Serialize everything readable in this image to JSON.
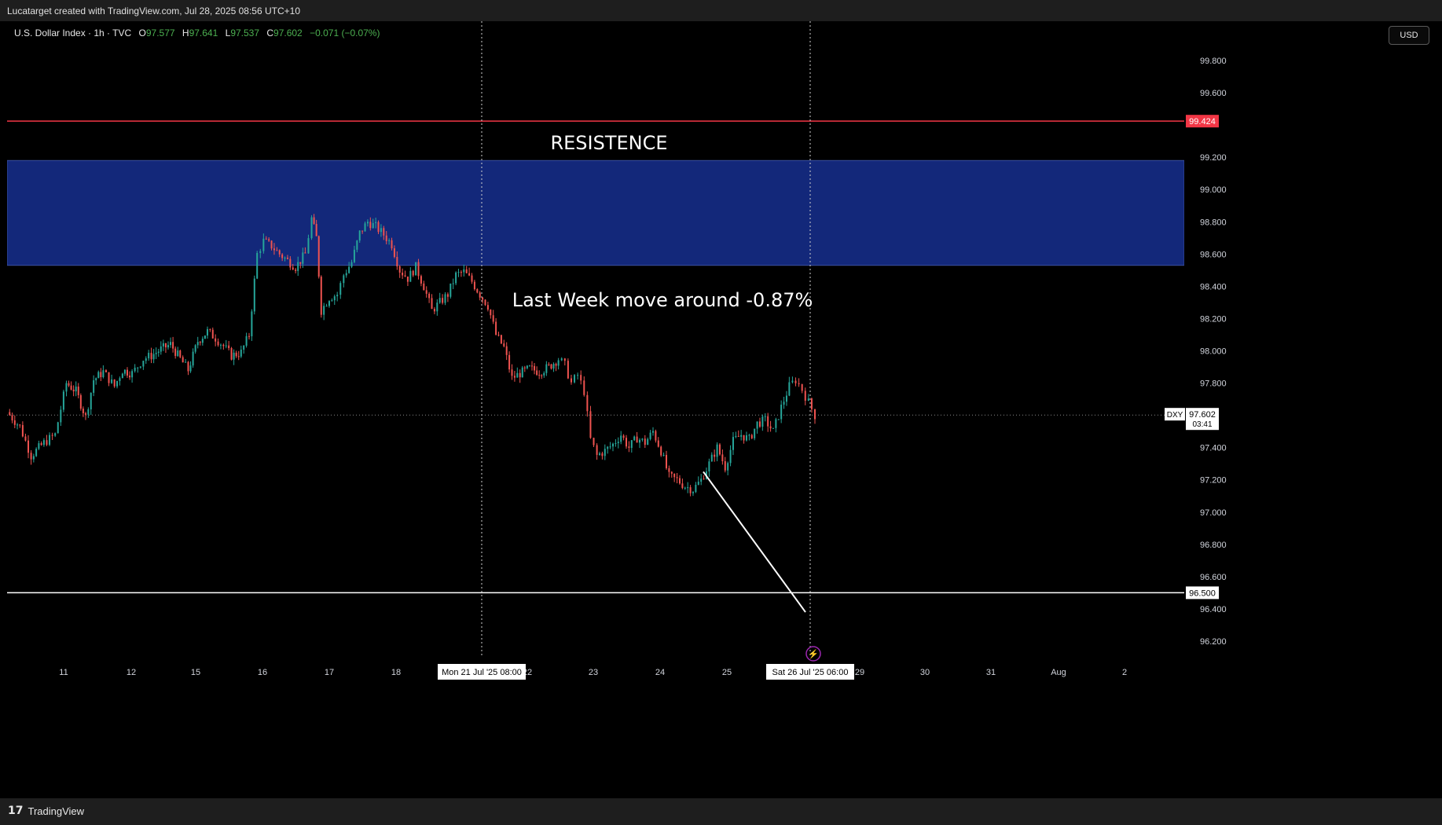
{
  "header": {
    "credit": "Lucatarget created with TradingView.com, Jul 28, 2025 08:56 UTC+10"
  },
  "legend": {
    "symbol": "U.S. Dollar Index · 1h · TVC",
    "o_label": "O",
    "o": "97.577",
    "h_label": "H",
    "h": "97.641",
    "l_label": "L",
    "l": "97.537",
    "c_label": "C",
    "c": "97.602",
    "change": "−0.071 (−0.07%)"
  },
  "currency_button": "USD",
  "footer": {
    "logo": "𝟭𝟳",
    "brand": "TradingView"
  },
  "colors": {
    "up": "#26a69a",
    "down": "#ef5350",
    "zone": "#13287a",
    "resistance_line": "#f23645",
    "support_line": "#ffffff",
    "text": "#ffffff"
  },
  "chart_data": {
    "type": "candlestick",
    "symbol": "DXY",
    "timeframe": "1h",
    "x_ticks": [
      "11",
      "12",
      "15",
      "16",
      "17",
      "18",
      "22",
      "23",
      "24",
      "25",
      "29",
      "30",
      "31",
      "Aug",
      "2"
    ],
    "y_ticks": [
      "99.800",
      "99.600",
      "99.200",
      "99.000",
      "98.800",
      "98.600",
      "98.400",
      "98.200",
      "98.000",
      "97.800",
      "97.400",
      "97.200",
      "97.000",
      "96.800",
      "96.600",
      "96.400",
      "96.200"
    ],
    "y_range": [
      96.1,
      100.0
    ],
    "last_price": {
      "label": "DXY",
      "value": "97.602",
      "countdown": "03:41"
    },
    "horizontal_lines": [
      {
        "name": "resistance",
        "value": "99.424",
        "color": "#f23645"
      },
      {
        "name": "support",
        "value": "96.500",
        "color": "#ffffff"
      }
    ],
    "resistance_zone": {
      "from": 98.53,
      "to": 99.18,
      "label": "RESISTENCE"
    },
    "annotation": "Last Week move around -0.87%",
    "trend_line": {
      "from_price": 97.25,
      "to_price": 96.38
    },
    "vertical_markers": [
      {
        "label": "Mon 21 Jul '25   08:00"
      },
      {
        "label": "Sat 26 Jul '25   06:00"
      }
    ],
    "series_path": [
      [
        0,
        97.62
      ],
      [
        0.8,
        97.53
      ],
      [
        1.5,
        97.35
      ],
      [
        2.3,
        97.43
      ],
      [
        3.0,
        97.48
      ],
      [
        3.7,
        97.8
      ],
      [
        4.3,
        97.75
      ],
      [
        4.9,
        97.59
      ],
      [
        5.4,
        97.82
      ],
      [
        6.0,
        97.87
      ],
      [
        6.7,
        97.78
      ],
      [
        7.2,
        97.88
      ],
      [
        7.8,
        97.86
      ],
      [
        8.5,
        97.95
      ],
      [
        9.0,
        97.97
      ],
      [
        9.6,
        98.01
      ],
      [
        10.2,
        98.04
      ],
      [
        10.8,
        97.95
      ],
      [
        11.3,
        97.88
      ],
      [
        11.9,
        98.06
      ],
      [
        12.5,
        98.12
      ],
      [
        13.0,
        98.08
      ],
      [
        13.5,
        98.03
      ],
      [
        14.0,
        97.97
      ],
      [
        14.6,
        97.99
      ],
      [
        15.1,
        98.1
      ],
      [
        15.6,
        98.6
      ],
      [
        16.0,
        98.68
      ],
      [
        16.5,
        98.65
      ],
      [
        17.0,
        98.6
      ],
      [
        17.5,
        98.56
      ],
      [
        18.0,
        98.52
      ],
      [
        18.6,
        98.6
      ],
      [
        19.0,
        98.82
      ],
      [
        19.3,
        98.7
      ],
      [
        19.6,
        98.25
      ],
      [
        20.1,
        98.33
      ],
      [
        20.6,
        98.35
      ],
      [
        21.0,
        98.47
      ],
      [
        21.5,
        98.55
      ],
      [
        22.0,
        98.73
      ],
      [
        22.5,
        98.8
      ],
      [
        23.0,
        98.77
      ],
      [
        23.5,
        98.72
      ],
      [
        24.0,
        98.66
      ],
      [
        24.5,
        98.5
      ],
      [
        25.0,
        98.45
      ],
      [
        25.5,
        98.52
      ],
      [
        26.0,
        98.4
      ],
      [
        26.5,
        98.25
      ],
      [
        27.0,
        98.3
      ],
      [
        27.5,
        98.35
      ],
      [
        28.0,
        98.47
      ],
      [
        28.5,
        98.49
      ],
      [
        29.0,
        98.43
      ],
      [
        29.5,
        98.35
      ],
      [
        30.0,
        98.28
      ],
      [
        30.5,
        98.1
      ],
      [
        31.0,
        98.02
      ],
      [
        31.5,
        97.83
      ],
      [
        32.0,
        97.86
      ],
      [
        32.6,
        97.89
      ],
      [
        33.2,
        97.87
      ],
      [
        33.8,
        97.9
      ],
      [
        34.4,
        97.95
      ],
      [
        34.8,
        97.91
      ],
      [
        35.2,
        97.8
      ],
      [
        35.6,
        97.85
      ],
      [
        36.0,
        97.75
      ],
      [
        36.4,
        97.45
      ],
      [
        36.8,
        97.35
      ],
      [
        37.3,
        97.38
      ],
      [
        37.8,
        97.42
      ],
      [
        38.3,
        97.48
      ],
      [
        38.8,
        97.4
      ],
      [
        39.3,
        97.46
      ],
      [
        39.8,
        97.43
      ],
      [
        40.3,
        97.5
      ],
      [
        40.8,
        97.38
      ],
      [
        41.3,
        97.22
      ],
      [
        41.8,
        97.2
      ],
      [
        42.3,
        97.16
      ],
      [
        42.8,
        97.14
      ],
      [
        43.3,
        97.2
      ],
      [
        43.8,
        97.3
      ],
      [
        44.3,
        97.4
      ],
      [
        44.8,
        97.28
      ],
      [
        45.3,
        97.44
      ],
      [
        45.8,
        97.48
      ],
      [
        46.3,
        97.45
      ],
      [
        46.8,
        97.55
      ],
      [
        47.3,
        97.57
      ],
      [
        47.8,
        97.5
      ],
      [
        48.3,
        97.65
      ],
      [
        48.8,
        97.78
      ],
      [
        49.2,
        97.82
      ],
      [
        49.6,
        97.76
      ],
      [
        50.0,
        97.68
      ],
      [
        50.4,
        97.6
      ]
    ]
  }
}
